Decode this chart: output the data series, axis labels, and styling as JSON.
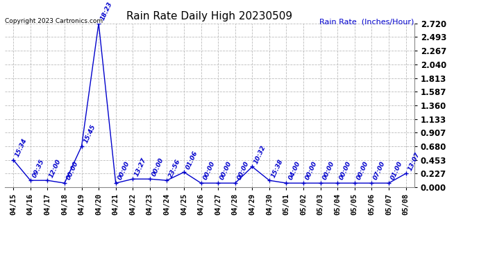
{
  "title": "Rain Rate Daily High 20230509",
  "ylabel": "Rain Rate  (Inches/Hour)",
  "copyright": "Copyright 2023 Cartronics.com",
  "background_color": "#ffffff",
  "line_color": "#0000cc",
  "label_color": "#0000cc",
  "grid_color": "#bbbbbb",
  "x_labels": [
    "04/15",
    "04/16",
    "04/17",
    "04/18",
    "04/19",
    "04/20",
    "04/21",
    "04/22",
    "04/23",
    "04/24",
    "04/25",
    "04/26",
    "04/27",
    "04/28",
    "04/29",
    "04/30",
    "05/01",
    "05/02",
    "05/03",
    "05/04",
    "05/05",
    "05/06",
    "05/07",
    "05/08"
  ],
  "x_values": [
    0,
    1,
    2,
    3,
    4,
    5,
    6,
    7,
    8,
    9,
    10,
    11,
    12,
    13,
    14,
    15,
    16,
    17,
    18,
    19,
    20,
    21,
    22,
    23
  ],
  "y_values": [
    0.453,
    0.113,
    0.113,
    0.068,
    0.68,
    2.72,
    0.068,
    0.136,
    0.136,
    0.113,
    0.25,
    0.068,
    0.068,
    0.068,
    0.34,
    0.113,
    0.068,
    0.068,
    0.068,
    0.068,
    0.068,
    0.068,
    0.068,
    0.227
  ],
  "point_labels": [
    "15:34",
    "09:35",
    "12:00",
    "00:00",
    "15:45",
    "18:23",
    "00:00",
    "13:27",
    "00:00",
    "23:56",
    "01:06",
    "00:00",
    "00:00",
    "00:00",
    "10:32",
    "15:38",
    "04:00",
    "00:00",
    "00:00",
    "00:00",
    "00:00",
    "07:00",
    "01:00",
    "13:07"
  ],
  "yticks": [
    0.0,
    0.227,
    0.453,
    0.68,
    0.907,
    1.133,
    1.36,
    1.587,
    1.813,
    2.04,
    2.267,
    2.493,
    2.72
  ],
  "ylim": [
    0.0,
    2.72
  ]
}
